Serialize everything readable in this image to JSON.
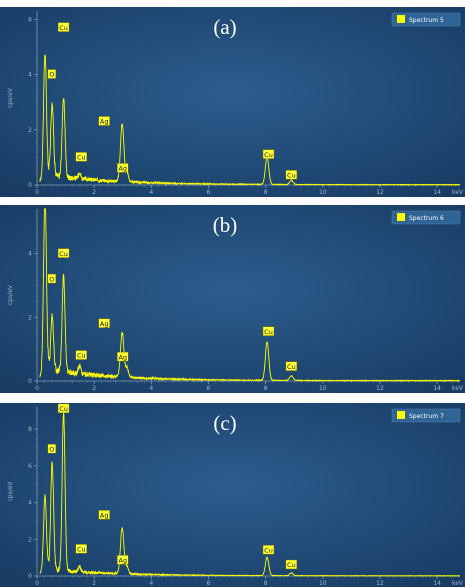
{
  "chart_data": [
    {
      "type": "line",
      "panel_label": "(a)",
      "legend": "Spectrum 5",
      "ylabel": "cps/eV",
      "xlabel": "keV",
      "xlim": [
        0,
        14.8
      ],
      "ylim": [
        0,
        6.3
      ],
      "x_ticks": [
        0,
        2,
        4,
        6,
        8,
        10,
        12,
        14
      ],
      "y_ticks": [
        0,
        2,
        4,
        6
      ],
      "color": "#ffff00",
      "peaks": [
        {
          "x": 0.28,
          "y": 4.4,
          "w": 0.05
        },
        {
          "x": 0.53,
          "y": 2.6,
          "w": 0.05
        },
        {
          "x": 0.93,
          "y": 2.9,
          "w": 0.05
        },
        {
          "x": 1.49,
          "y": 0.25,
          "w": 0.04
        },
        {
          "x": 2.98,
          "y": 2.1,
          "w": 0.06
        },
        {
          "x": 3.15,
          "y": 0.35,
          "w": 0.05
        },
        {
          "x": 8.05,
          "y": 1.0,
          "w": 0.06
        },
        {
          "x": 8.9,
          "y": 0.15,
          "w": 0.06
        }
      ],
      "annotations": [
        {
          "label": "O",
          "x": 0.52,
          "y": 4.0
        },
        {
          "label": "Cu",
          "x": 0.93,
          "y": 5.7
        },
        {
          "label": "Cu",
          "x": 1.55,
          "y": 1.0
        },
        {
          "label": "Ag",
          "x": 2.35,
          "y": 2.3
        },
        {
          "label": "Ag",
          "x": 3.0,
          "y": 0.6
        },
        {
          "label": "Cu",
          "x": 8.1,
          "y": 1.1
        },
        {
          "label": "Cu",
          "x": 8.9,
          "y": 0.35
        }
      ]
    },
    {
      "type": "line",
      "panel_label": "(b)",
      "legend": "Spectrum 6",
      "ylabel": "cps/eV",
      "xlabel": "keV",
      "xlim": [
        0,
        14.8
      ],
      "ylim": [
        0,
        5.4
      ],
      "x_ticks": [
        0,
        2,
        4,
        6,
        8,
        10,
        12,
        14
      ],
      "y_ticks": [
        0,
        2,
        4
      ],
      "color": "#ffff00",
      "peaks": [
        {
          "x": 0.28,
          "y": 5.5,
          "w": 0.05
        },
        {
          "x": 0.53,
          "y": 1.7,
          "w": 0.05
        },
        {
          "x": 0.93,
          "y": 3.0,
          "w": 0.05
        },
        {
          "x": 1.49,
          "y": 0.25,
          "w": 0.04
        },
        {
          "x": 2.98,
          "y": 1.4,
          "w": 0.06
        },
        {
          "x": 3.15,
          "y": 0.3,
          "w": 0.05
        },
        {
          "x": 8.05,
          "y": 1.2,
          "w": 0.06
        },
        {
          "x": 8.9,
          "y": 0.15,
          "w": 0.06
        }
      ],
      "annotations": [
        {
          "label": "O",
          "x": 0.52,
          "y": 3.2
        },
        {
          "label": "Cu",
          "x": 0.93,
          "y": 4.0
        },
        {
          "label": "Cu",
          "x": 1.55,
          "y": 0.8
        },
        {
          "label": "Ag",
          "x": 2.35,
          "y": 1.8
        },
        {
          "label": "Ag",
          "x": 3.0,
          "y": 0.75
        },
        {
          "label": "Cu",
          "x": 8.1,
          "y": 1.55
        },
        {
          "label": "Cu",
          "x": 8.9,
          "y": 0.45
        }
      ]
    },
    {
      "type": "line",
      "panel_label": "(c)",
      "legend": "Spectrum 7",
      "ylabel": "cps/eV",
      "xlabel": "keV",
      "xlim": [
        0,
        14.8
      ],
      "ylim": [
        0,
        9.2
      ],
      "x_ticks": [
        0,
        2,
        4,
        6,
        8,
        10,
        12,
        14
      ],
      "y_ticks": [
        0,
        2,
        4,
        6,
        8
      ],
      "color": "#ffff00",
      "peaks": [
        {
          "x": 0.28,
          "y": 4.0,
          "w": 0.05
        },
        {
          "x": 0.53,
          "y": 5.8,
          "w": 0.05
        },
        {
          "x": 0.93,
          "y": 8.6,
          "w": 0.05
        },
        {
          "x": 1.49,
          "y": 0.3,
          "w": 0.04
        },
        {
          "x": 2.98,
          "y": 2.5,
          "w": 0.06
        },
        {
          "x": 3.15,
          "y": 0.4,
          "w": 0.05
        },
        {
          "x": 8.05,
          "y": 1.0,
          "w": 0.06
        },
        {
          "x": 8.9,
          "y": 0.15,
          "w": 0.06
        }
      ],
      "annotations": [
        {
          "label": "O",
          "x": 0.52,
          "y": 6.9
        },
        {
          "label": "Cu",
          "x": 0.93,
          "y": 9.1
        },
        {
          "label": "Cu",
          "x": 1.55,
          "y": 1.45
        },
        {
          "label": "Ag",
          "x": 2.35,
          "y": 3.3
        },
        {
          "label": "Ag",
          "x": 3.0,
          "y": 0.85
        },
        {
          "label": "Cu",
          "x": 8.1,
          "y": 1.4
        },
        {
          "label": "Cu",
          "x": 8.9,
          "y": 0.6
        }
      ]
    }
  ]
}
